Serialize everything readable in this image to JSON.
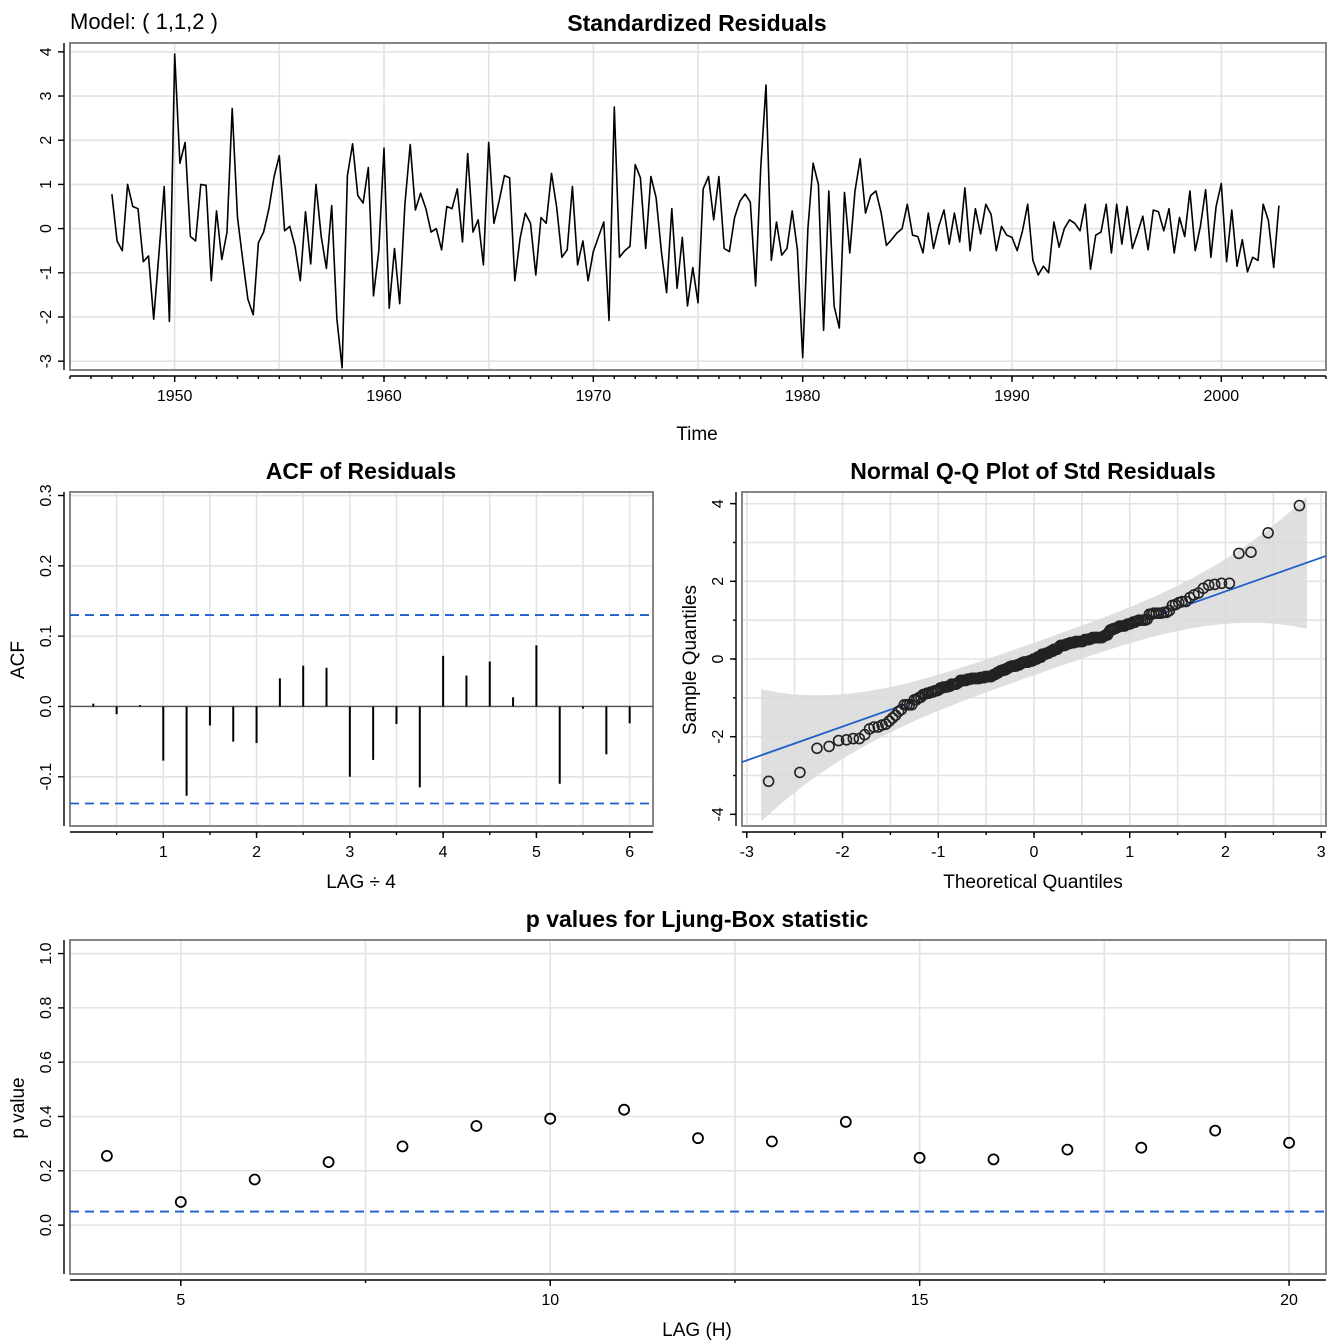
{
  "model_label": "Model: ( 1,1,2 )",
  "colors": {
    "line": "#000000",
    "ci": "#1f5fc8",
    "band": "#d9d9d9",
    "grid": "#e3e3e3",
    "frame": "#858585"
  },
  "chart_data": [
    {
      "id": "residuals",
      "type": "line",
      "title": "Standardized Residuals",
      "xlabel": "Time",
      "ylabel": "",
      "xlim": [
        1945,
        2005
      ],
      "ylim": [
        -3.2,
        4.2
      ],
      "xticks": [
        1950,
        1960,
        1970,
        1980,
        1990,
        2000
      ],
      "yticks": [
        -3,
        -2,
        -1,
        0,
        1,
        2,
        3,
        4
      ],
      "x_start": 1947.0,
      "x_step": 0.25,
      "grid": true,
      "values": [
        0.78,
        -0.28,
        -0.5,
        1.0,
        0.5,
        0.45,
        -0.75,
        -0.62,
        -2.05,
        -0.55,
        0.95,
        -2.1,
        3.95,
        1.48,
        1.95,
        -0.18,
        -0.28,
        1.0,
        0.98,
        -1.18,
        0.4,
        -0.7,
        -0.08,
        2.72,
        0.25,
        -0.7,
        -1.6,
        -1.95,
        -0.32,
        -0.08,
        0.45,
        1.18,
        1.65,
        -0.05,
        0.05,
        -0.4,
        -1.18,
        0.38,
        -0.8,
        1.0,
        -0.18,
        -0.9,
        0.52,
        -2.05,
        -3.15,
        1.2,
        1.92,
        0.75,
        0.58,
        1.38,
        -1.52,
        -0.5,
        1.82,
        -1.8,
        -0.45,
        -1.7,
        0.55,
        1.9,
        0.42,
        0.8,
        0.45,
        -0.08,
        0.0,
        -0.48,
        0.5,
        0.45,
        0.9,
        -0.3,
        1.7,
        -0.08,
        0.2,
        -0.82,
        1.95,
        0.12,
        0.62,
        1.2,
        1.15,
        -1.18,
        -0.22,
        0.35,
        0.12,
        -1.05,
        0.25,
        0.12,
        1.25,
        0.48,
        -0.65,
        -0.48,
        0.95,
        -0.82,
        -0.28,
        -1.18,
        -0.52,
        -0.18,
        0.15,
        -2.08,
        2.75,
        -0.65,
        -0.5,
        -0.4,
        1.45,
        1.15,
        -0.45,
        1.18,
        0.7,
        -0.52,
        -1.45,
        0.45,
        -1.35,
        -0.2,
        -1.75,
        -0.88,
        -1.68,
        0.9,
        1.18,
        0.2,
        1.18,
        -0.45,
        -0.52,
        0.25,
        0.62,
        0.78,
        0.6,
        -1.3,
        1.4,
        3.25,
        -0.72,
        0.15,
        -0.6,
        -0.45,
        0.4,
        -0.48,
        -2.92,
        0.0,
        1.48,
        1.0,
        -2.3,
        0.85,
        -1.75,
        -2.25,
        0.82,
        -0.55,
        0.85,
        1.58,
        0.35,
        0.75,
        0.85,
        0.35,
        -0.38,
        -0.25,
        -0.1,
        0.0,
        0.55,
        -0.15,
        -0.18,
        -0.55,
        0.35,
        -0.45,
        0.05,
        0.42,
        -0.35,
        0.35,
        -0.3,
        0.92,
        -0.5,
        0.45,
        -0.12,
        0.55,
        0.32,
        -0.5,
        0.05,
        -0.15,
        -0.2,
        -0.5,
        -0.05,
        0.55,
        -0.72,
        -1.05,
        -0.85,
        -1.0,
        0.15,
        -0.42,
        0.0,
        0.2,
        0.12,
        -0.05,
        0.55,
        -0.92,
        -0.15,
        -0.08,
        0.55,
        -0.55,
        0.55,
        -0.35,
        0.5,
        -0.45,
        -0.1,
        0.28,
        -0.48,
        0.42,
        0.38,
        -0.05,
        0.45,
        -0.55,
        0.25,
        -0.18,
        0.85,
        -0.5,
        0.05,
        0.88,
        -0.65,
        0.5,
        1.02,
        -0.75,
        0.42,
        -0.85,
        -0.25,
        -0.98,
        -0.65,
        -0.72,
        0.55,
        0.18,
        -0.88,
        0.52
      ]
    },
    {
      "id": "acf",
      "type": "bar",
      "title": "ACF of Residuals",
      "xlabel": "LAG ÷ 4",
      "ylabel": "ACF",
      "xlim": [
        0,
        6.25
      ],
      "ylim": [
        -0.17,
        0.305
      ],
      "xticks": [
        1,
        2,
        3,
        4,
        5,
        6
      ],
      "yticks": [
        -0.1,
        0.0,
        0.1,
        0.2,
        0.3
      ],
      "ci_bound": 0.13,
      "ci_lower": -0.138,
      "lags": [
        0.25,
        0.5,
        0.75,
        1.0,
        1.25,
        1.5,
        1.75,
        2.0,
        2.25,
        2.5,
        2.75,
        3.0,
        3.25,
        3.5,
        3.75,
        4.0,
        4.25,
        4.5,
        4.75,
        5.0,
        5.25,
        5.5,
        5.75,
        6.0
      ],
      "values": [
        0.004,
        -0.011,
        0.002,
        -0.077,
        -0.127,
        -0.027,
        -0.05,
        -0.052,
        0.04,
        0.058,
        0.055,
        -0.1,
        -0.076,
        -0.025,
        -0.115,
        0.072,
        0.044,
        0.064,
        0.013,
        0.087,
        -0.11,
        -0.003,
        -0.068,
        -0.024
      ],
      "grid": true
    },
    {
      "id": "qq",
      "type": "scatter",
      "title": "Normal Q-Q Plot of Std Residuals",
      "xlabel": "Theoretical Quantiles",
      "ylabel": "Sample Quantiles",
      "xlim": [
        -3.05,
        3.05
      ],
      "ylim": [
        -4.3,
        4.3
      ],
      "xticks": [
        -3,
        -2,
        -1,
        0,
        1,
        2,
        3
      ],
      "yticks": [
        -4,
        -2,
        0,
        2,
        4
      ],
      "reference_line": {
        "intercept": 0.0,
        "slope": 0.87
      },
      "grid": true
    },
    {
      "id": "ljung_box",
      "type": "scatter",
      "title": "p values for Ljung-Box statistic",
      "xlabel": "LAG (H)",
      "ylabel": "p value",
      "xlim": [
        3.5,
        20.5
      ],
      "ylim": [
        -0.18,
        1.05
      ],
      "xticks": [
        5,
        10,
        15,
        20
      ],
      "yticks": [
        0.0,
        0.2,
        0.4,
        0.6,
        0.8,
        1.0
      ],
      "threshold": 0.05,
      "x": [
        4,
        5,
        6,
        7,
        8,
        9,
        10,
        11,
        12,
        13,
        14,
        15,
        16,
        17,
        18,
        19,
        20
      ],
      "values": [
        0.255,
        0.085,
        0.168,
        0.232,
        0.29,
        0.365,
        0.392,
        0.425,
        0.32,
        0.308,
        0.38,
        0.248,
        0.242,
        0.278,
        0.285,
        0.348,
        0.303
      ],
      "grid": true
    }
  ]
}
